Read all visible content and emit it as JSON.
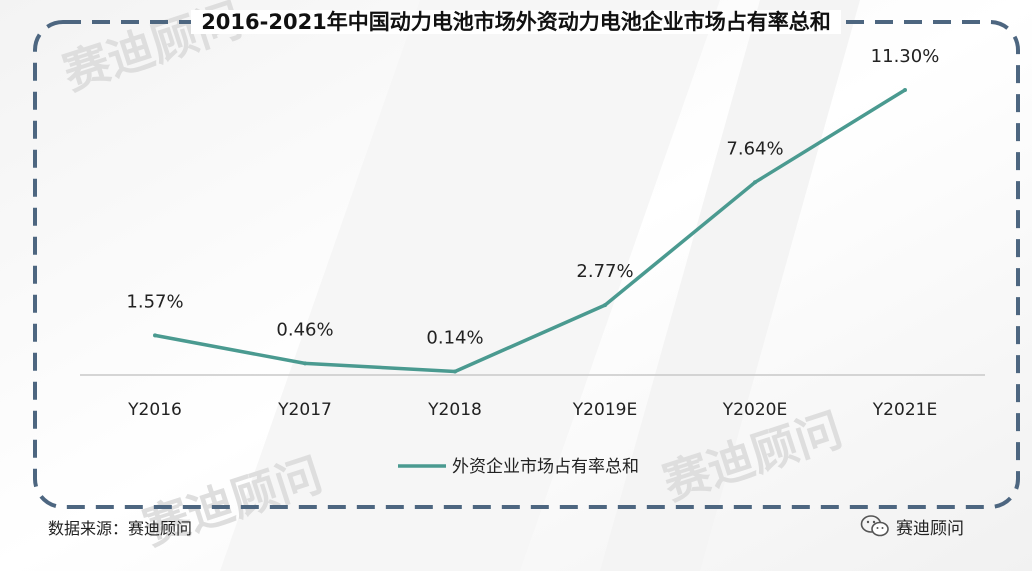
{
  "title": "2016-2021年中国动力电池市场外资动力电池企业市场占有率总和",
  "source": "数据来源：赛迪顾问",
  "brand": "赛迪顾问",
  "watermark": "赛迪顾问",
  "colors": {
    "line": "#4a9a90",
    "frame": "#4d6680",
    "axis": "#c8c8c8"
  },
  "chart_data": {
    "type": "line",
    "title": "2016-2021年中国动力电池市场外资动力电池企业市场占有率总和",
    "categories": [
      "Y2016",
      "Y2017",
      "Y2018",
      "Y2019E",
      "Y2020E",
      "Y2021E"
    ],
    "series": [
      {
        "name": "外资企业市场占有率总和",
        "values": [
          1.57,
          0.46,
          0.14,
          2.77,
          7.64,
          11.3
        ],
        "labels": [
          "1.57%",
          "0.46%",
          "0.14%",
          "2.77%",
          "7.64%",
          "11.30%"
        ]
      }
    ],
    "ylim": [
      0,
      12
    ],
    "grid": false,
    "legend": "bottom"
  }
}
